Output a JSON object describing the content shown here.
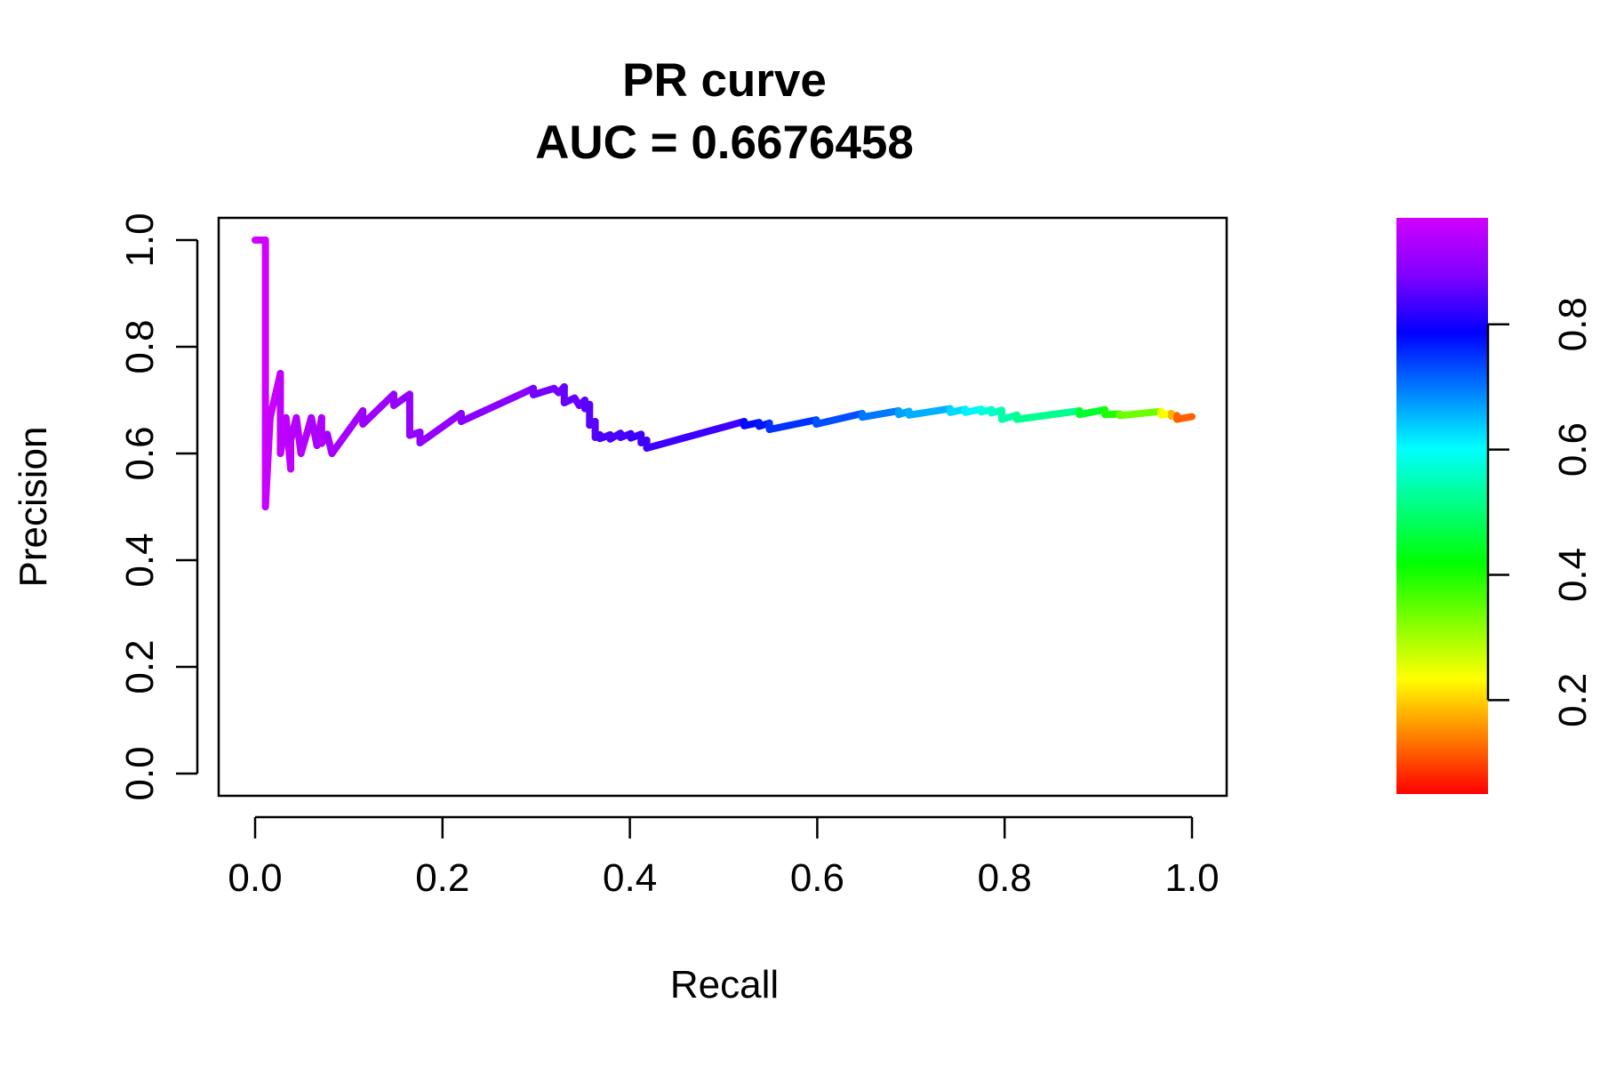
{
  "chart_data": {
    "type": "line",
    "title": "PR curve",
    "subtitle": "AUC = 0.6676458",
    "xlabel": "Recall",
    "ylabel": "Precision",
    "xlim": [
      0.0,
      1.0
    ],
    "ylim": [
      0.0,
      1.0
    ],
    "x_ticks": [
      "0.0",
      "0.2",
      "0.4",
      "0.6",
      "0.8",
      "1.0"
    ],
    "y_ticks": [
      "0.0",
      "0.2",
      "0.4",
      "0.6",
      "0.8",
      "1.0"
    ],
    "grid": false,
    "legend": "none",
    "colorbar": {
      "range": [
        0.05,
        0.97
      ],
      "ticks": [
        "0.2",
        "0.4",
        "0.6",
        "0.8"
      ],
      "tick_values": [
        0.2,
        0.4,
        0.6,
        0.8
      ],
      "palette": [
        "#ff0000",
        "#ff8000",
        "#ffff00",
        "#80ff00",
        "#00ff00",
        "#00ff80",
        "#00ffff",
        "#0080ff",
        "#0000ff",
        "#8000ff",
        "#d000ff"
      ]
    },
    "series": [
      {
        "color_by": "threshold",
        "recall": [
          0.0,
          0.011,
          0.011,
          0.016,
          0.027,
          0.027,
          0.033,
          0.038,
          0.038,
          0.044,
          0.049,
          0.055,
          0.06,
          0.066,
          0.071,
          0.071,
          0.077,
          0.082,
          0.115,
          0.115,
          0.148,
          0.148,
          0.165,
          0.165,
          0.176,
          0.176,
          0.22,
          0.22,
          0.297,
          0.297,
          0.319,
          0.324,
          0.33,
          0.33,
          0.341,
          0.346,
          0.352,
          0.352,
          0.357,
          0.357,
          0.363,
          0.363,
          0.368,
          0.368,
          0.379,
          0.379,
          0.39,
          0.39,
          0.401,
          0.401,
          0.412,
          0.412,
          0.418,
          0.418,
          0.522,
          0.522,
          0.538,
          0.538,
          0.549,
          0.549,
          0.599,
          0.599,
          0.648,
          0.648,
          0.687,
          0.687,
          0.698,
          0.698,
          0.742,
          0.742,
          0.758,
          0.758,
          0.775,
          0.775,
          0.786,
          0.786,
          0.797,
          0.797,
          0.813,
          0.813,
          0.88,
          0.88,
          0.907,
          0.907,
          0.923,
          0.923,
          0.967,
          0.967,
          0.978,
          0.978,
          0.984,
          0.984,
          1.0
        ],
        "precision": [
          1.0,
          1.0,
          0.5,
          0.667,
          0.75,
          0.6,
          0.667,
          0.571,
          0.625,
          0.667,
          0.6,
          0.636,
          0.667,
          0.615,
          0.667,
          0.619,
          0.636,
          0.6,
          0.68,
          0.655,
          0.711,
          0.69,
          0.711,
          0.634,
          0.64,
          0.62,
          0.675,
          0.66,
          0.722,
          0.71,
          0.722,
          0.714,
          0.725,
          0.695,
          0.704,
          0.69,
          0.7,
          0.684,
          0.692,
          0.653,
          0.66,
          0.63,
          0.635,
          0.628,
          0.635,
          0.627,
          0.638,
          0.63,
          0.637,
          0.629,
          0.636,
          0.62,
          0.625,
          0.61,
          0.66,
          0.652,
          0.658,
          0.651,
          0.657,
          0.645,
          0.663,
          0.655,
          0.675,
          0.668,
          0.68,
          0.673,
          0.679,
          0.672,
          0.684,
          0.677,
          0.683,
          0.677,
          0.683,
          0.678,
          0.682,
          0.676,
          0.681,
          0.664,
          0.672,
          0.664,
          0.68,
          0.673,
          0.682,
          0.673,
          0.674,
          0.671,
          0.679,
          0.672,
          0.675,
          0.67,
          0.671,
          0.664,
          0.669
        ],
        "threshold": [
          0.97,
          0.97,
          0.96,
          0.96,
          0.95,
          0.95,
          0.95,
          0.95,
          0.94,
          0.94,
          0.94,
          0.94,
          0.93,
          0.93,
          0.93,
          0.93,
          0.92,
          0.92,
          0.91,
          0.91,
          0.9,
          0.9,
          0.9,
          0.9,
          0.9,
          0.9,
          0.89,
          0.89,
          0.87,
          0.87,
          0.87,
          0.87,
          0.86,
          0.86,
          0.86,
          0.86,
          0.85,
          0.85,
          0.85,
          0.85,
          0.85,
          0.85,
          0.84,
          0.84,
          0.84,
          0.84,
          0.84,
          0.84,
          0.83,
          0.83,
          0.83,
          0.83,
          0.83,
          0.83,
          0.78,
          0.78,
          0.77,
          0.77,
          0.75,
          0.75,
          0.73,
          0.73,
          0.7,
          0.7,
          0.67,
          0.67,
          0.66,
          0.66,
          0.63,
          0.63,
          0.61,
          0.61,
          0.58,
          0.58,
          0.56,
          0.56,
          0.54,
          0.54,
          0.52,
          0.52,
          0.45,
          0.45,
          0.4,
          0.4,
          0.34,
          0.34,
          0.24,
          0.24,
          0.18,
          0.18,
          0.12,
          0.12,
          0.06
        ]
      }
    ]
  }
}
